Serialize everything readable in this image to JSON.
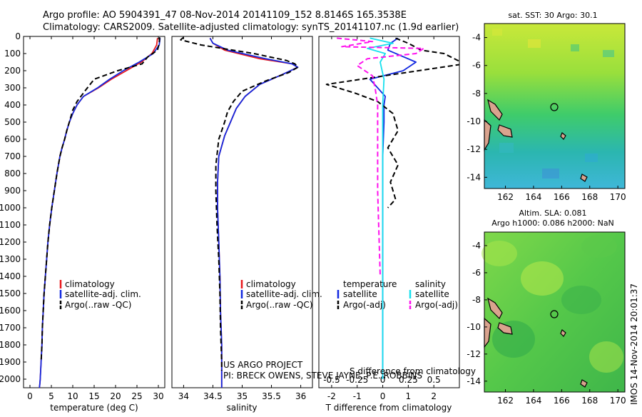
{
  "header": {
    "line1": "Argo profile: AO 5904391_47 08-Nov-2014 20141109_152 8.8146S 165.3538E",
    "line2": "Climatology: CARS2009. Satellite-adjusted climatology: synTS_20141107.nc (1.9d earlier)"
  },
  "credits": {
    "project": "US ARGO PROJECT",
    "pi": "PI: BRECK OWENS, STEVE JAYNE, P.E. ROBBINS",
    "timestamp": "IMOS 14-Nov-2014 20:01:37"
  },
  "colors": {
    "climatology": "#e8171b",
    "satellite": "#1228e0",
    "argo": "#000000",
    "salinity_satellite": "#16e0ee",
    "salinity_argo": "#ff11ee",
    "land": "#d9a38e"
  },
  "chart_data": [
    {
      "type": "line",
      "panel": "temperature",
      "xlabel": "temperature (deg C)",
      "ylabel": "",
      "xlim": [
        -1.5,
        31.5
      ],
      "ylim": [
        0,
        2050
      ],
      "y_inverted": true,
      "xticks": [
        0,
        5,
        10,
        15,
        20,
        25,
        30
      ],
      "yticks": [
        0,
        100,
        200,
        300,
        400,
        500,
        600,
        700,
        800,
        900,
        1000,
        1100,
        1200,
        1300,
        1400,
        1500,
        1600,
        1700,
        1800,
        1900,
        2000
      ],
      "legend": [
        "climatology",
        "satellite-adj. clim.",
        "Argo(..raw -QC)"
      ],
      "series": [
        {
          "name": "climatology",
          "color": "#e8171b",
          "dash": "none",
          "x": [
            29.8,
            29.6,
            28.5,
            26,
            22.5,
            19,
            16,
            12.5,
            11,
            10,
            9.2,
            8.6,
            8.1,
            7.5,
            7,
            6.3,
            5.7,
            5.1,
            4.6,
            4.2,
            3.9,
            3.6,
            3.3,
            3.1,
            2.9,
            2.8,
            2.6,
            2.5,
            2.4,
            2.3,
            2.2
          ],
          "y": [
            10,
            50,
            100,
            150,
            200,
            250,
            300,
            350,
            400,
            450,
            500,
            550,
            600,
            650,
            700,
            800,
            900,
            1000,
            1100,
            1200,
            1300,
            1400,
            1500,
            1600,
            1700,
            1800,
            1900,
            1950,
            2000,
            2030,
            2050
          ]
        },
        {
          "name": "satellite-adj. clim.",
          "color": "#1228e0",
          "dash": "none",
          "x": [
            30.4,
            30.2,
            28.8,
            25.5,
            21.8,
            18.6,
            15.8,
            12.5,
            11,
            10,
            9.2,
            8.6,
            8.1,
            7.5,
            7,
            6.3,
            5.7,
            5.1,
            4.6,
            4.2,
            3.9,
            3.6,
            3.3,
            3.1,
            2.9,
            2.8,
            2.6,
            2.5,
            2.4,
            2.3,
            2.2
          ],
          "y": [
            10,
            50,
            100,
            150,
            200,
            250,
            300,
            350,
            400,
            450,
            500,
            550,
            600,
            650,
            700,
            800,
            900,
            1000,
            1100,
            1200,
            1300,
            1400,
            1500,
            1600,
            1700,
            1800,
            1900,
            1950,
            2000,
            2030,
            2050
          ]
        },
        {
          "name": "Argo(..raw -QC)",
          "color": "#000000",
          "dash": "7,4",
          "x": [
            30.3,
            30.2,
            29.8,
            27.5,
            26.2,
            20.5,
            15,
            12.8,
            11,
            10,
            9.2,
            8.6,
            8.1,
            7.5,
            7,
            6.3,
            5.7,
            5.1,
            4.6,
            4.2,
            3.9,
            3.6,
            3.3,
            3.1,
            2.9,
            2.8,
            2.6
          ],
          "y": [
            5,
            40,
            80,
            120,
            160,
            200,
            250,
            320,
            380,
            430,
            500,
            550,
            600,
            650,
            700,
            800,
            900,
            1000,
            1100,
            1200,
            1300,
            1400,
            1500,
            1600,
            1700,
            1800,
            1900
          ]
        }
      ]
    },
    {
      "type": "line",
      "panel": "salinity",
      "xlabel": "salinity",
      "ylabel": "",
      "xlim": [
        33.8,
        36.2
      ],
      "ylim": [
        0,
        2050
      ],
      "y_inverted": true,
      "xticks": [
        34,
        34.5,
        35,
        35.5,
        36
      ],
      "xtick_labels": [
        "34",
        "34.5",
        "35",
        "35.5",
        "36"
      ],
      "legend": [
        "climatology",
        "satellite-adj. clim.",
        "Argo(..raw -QC)"
      ],
      "series": [
        {
          "name": "climatology",
          "color": "#e8171b",
          "dash": "none",
          "x": [
            34.45,
            34.5,
            34.7,
            35.3,
            35.85,
            35.95,
            35.7,
            35.3,
            35.05,
            34.9,
            34.8,
            34.7,
            34.6,
            34.58,
            34.58,
            34.6,
            34.62,
            34.63,
            34.65,
            34.65,
            34.65
          ],
          "y": [
            10,
            40,
            80,
            130,
            160,
            180,
            220,
            280,
            350,
            420,
            500,
            580,
            700,
            850,
            1000,
            1200,
            1400,
            1600,
            1800,
            2000,
            2050
          ]
        },
        {
          "name": "satellite-adj. clim.",
          "color": "#1228e0",
          "dash": "none",
          "x": [
            34.45,
            34.5,
            34.75,
            35.4,
            35.85,
            35.95,
            35.7,
            35.3,
            35.05,
            34.9,
            34.8,
            34.7,
            34.6,
            34.58,
            34.58,
            34.6,
            34.62,
            34.63,
            34.65,
            34.65,
            34.65
          ],
          "y": [
            10,
            40,
            80,
            130,
            160,
            180,
            220,
            280,
            350,
            420,
            500,
            580,
            700,
            850,
            1000,
            1200,
            1400,
            1600,
            1800,
            2000,
            2050
          ]
        },
        {
          "name": "Argo(..raw -QC)",
          "color": "#000000",
          "dash": "7,4",
          "x": [
            34.0,
            33.95,
            34.3,
            35.2,
            35.75,
            35.9,
            35.95,
            35.8,
            35.4,
            35.0,
            34.85,
            34.75,
            34.7,
            34.6,
            34.55,
            34.55,
            34.57,
            34.6,
            34.62,
            34.63,
            34.65,
            34.65
          ],
          "y": [
            5,
            20,
            50,
            100,
            140,
            160,
            180,
            210,
            260,
            320,
            380,
            440,
            500,
            600,
            750,
            900,
            1100,
            1300,
            1500,
            1700,
            1900,
            1950
          ]
        }
      ]
    },
    {
      "type": "line",
      "panel": "difference",
      "xlabel": "T difference from climatology",
      "top_label": "S difference from climatology",
      "xlim": [
        -2.5,
        3
      ],
      "ylim": [
        0,
        2050
      ],
      "y_inverted": true,
      "xticks": [
        -2,
        -1,
        0,
        1,
        2
      ],
      "top_ticks": [
        -0.5,
        -0.25,
        0,
        0.25,
        0.5
      ],
      "top_tick_labels": [
        "-0.5",
        "-0.25",
        "0",
        "0.25",
        "0.5"
      ],
      "legend_groups": [
        {
          "title": "temperature",
          "items": [
            "satellite",
            "Argo(-adj)"
          ]
        },
        {
          "title": "salinity",
          "items": [
            "satellite",
            "Argo(-adj)"
          ]
        }
      ],
      "series": [
        {
          "name": "temperature satellite",
          "color": "#1228e0",
          "dash": "none",
          "x": [
            0.6,
            0.3,
            0.2,
            1.3,
            0.8,
            -0.5,
            -0.2,
            0.1,
            0.05,
            0.05,
            0,
            0,
            0,
            0,
            0
          ],
          "y": [
            10,
            40,
            80,
            150,
            200,
            250,
            300,
            350,
            400,
            500,
            700,
            1000,
            1500,
            1900,
            2000
          ]
        },
        {
          "name": "temperature Argo(-adj)",
          "color": "#000000",
          "dash": "7,4",
          "x": [
            0.5,
            1.0,
            1.5,
            2.4,
            3.2,
            -2.2,
            -1.1,
            -0.2,
            0.4,
            0.6,
            0.2,
            0.6,
            0.3,
            0.5,
            0.2
          ],
          "y": [
            10,
            40,
            80,
            100,
            160,
            280,
            330,
            380,
            450,
            550,
            650,
            750,
            850,
            950,
            1000
          ]
        },
        {
          "name": "salinity satellite",
          "color": "#16e0ee",
          "dash": "none",
          "x": [
            -0.5,
            0.4,
            -0.6,
            0.1,
            -0.1,
            0.05,
            0,
            0,
            0,
            0,
            0,
            0
          ],
          "y": [
            10,
            40,
            70,
            100,
            150,
            250,
            400,
            600,
            900,
            1300,
            1700,
            2000
          ]
        },
        {
          "name": "salinity Argo(-adj)",
          "color": "#ff11ee",
          "dash": "7,4",
          "x": [
            -1.8,
            -0.4,
            -1.6,
            1.6,
            1.3,
            -0.6,
            -1.0,
            -0.4,
            -0.3,
            -0.2,
            -0.2,
            -0.1
          ],
          "y": [
            10,
            30,
            60,
            70,
            100,
            130,
            170,
            230,
            300,
            400,
            900,
            1400
          ]
        }
      ]
    },
    {
      "type": "heatmap",
      "panel": "sst-map",
      "title": "sat. SST: 30 Argo: 30.1",
      "xlim": [
        160.5,
        170.5
      ],
      "ylim": [
        -14.8,
        -3
      ],
      "xticks": [
        162,
        164,
        166,
        168,
        170
      ],
      "yticks": [
        -4,
        -6,
        -8,
        -10,
        -12,
        -14
      ],
      "profile_location": {
        "lon": 165.35,
        "lat": -8.81
      }
    },
    {
      "type": "heatmap",
      "panel": "sla-map",
      "title": "Altim. SLA: 0.081",
      "subtitle": "Argo h1000: 0.086 h2000: NaN",
      "xlim": [
        160.5,
        170.5
      ],
      "ylim": [
        -14.8,
        -3
      ],
      "xticks": [
        162,
        164,
        166,
        168,
        170
      ],
      "yticks": [
        -4,
        -6,
        -8,
        -10,
        -12,
        -14
      ],
      "profile_location": {
        "lon": 165.35,
        "lat": -8.81
      }
    }
  ]
}
